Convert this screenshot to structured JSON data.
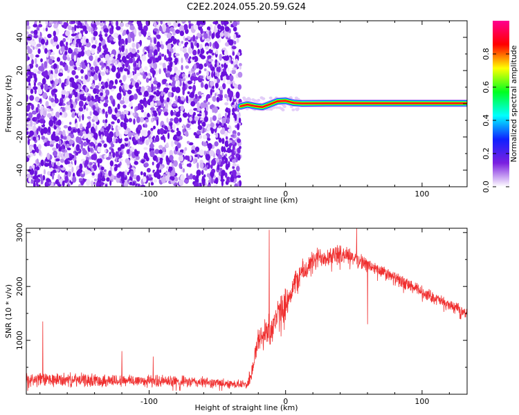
{
  "title": "C2E2.2024.055.20.59.G24",
  "chart_data": [
    {
      "type": "heatmap",
      "name": "spectrogram",
      "xlabel": "Height of straight line (km)",
      "ylabel": "Frequency (Hz)",
      "xlim": [
        -190,
        133
      ],
      "ylim": [
        -50,
        50
      ],
      "xticks": [
        -100,
        0,
        100
      ],
      "xtick_labels": [
        "-100",
        "0",
        "100"
      ],
      "yticks": [
        -40,
        -20,
        0,
        20,
        40
      ],
      "ytick_labels": [
        "-40",
        "-20",
        "0",
        "20",
        "40"
      ],
      "noise_region_x": [
        -190,
        -33
      ],
      "signal_start_x": -33,
      "signal_line": [
        {
          "x": -33,
          "y": -1.5
        },
        {
          "x": -28,
          "y": -0.5
        },
        {
          "x": -22,
          "y": -1.5
        },
        {
          "x": -17,
          "y": -2.0
        },
        {
          "x": -12,
          "y": -0.5
        },
        {
          "x": -6,
          "y": 1.5
        },
        {
          "x": 0,
          "y": 1.8
        },
        {
          "x": 6,
          "y": 0.5
        },
        {
          "x": 12,
          "y": 0.2
        },
        {
          "x": 30,
          "y": 0.3
        },
        {
          "x": 133,
          "y": 0.3
        }
      ],
      "colorbar": {
        "label": "Normalized spectral amplitude",
        "range": [
          0,
          1
        ],
        "ticks": [
          0.0,
          0.2,
          0.4,
          0.6,
          0.8
        ],
        "tick_labels": [
          "0.0",
          "0.2",
          "0.4",
          "0.6",
          "0.8"
        ],
        "colors": [
          "#ffffff",
          "#7b1fe0",
          "#1020ff",
          "#00ffff",
          "#00ff20",
          "#ffff00",
          "#ff0000",
          "#ff0090"
        ]
      },
      "grid": false
    },
    {
      "type": "line",
      "name": "snr",
      "xlabel": "Height of straight line (km)",
      "ylabel": "SNR (10 * v/v)",
      "xlim": [
        -190,
        133
      ],
      "ylim": [
        0,
        3080
      ],
      "xticks": [
        -100,
        0,
        100
      ],
      "xtick_labels": [
        "-100",
        "0",
        "100"
      ],
      "yticks": [
        1000,
        2000,
        3000
      ],
      "ytick_labels": [
        "1000",
        "2000",
        "3000"
      ],
      "color": "#f03030",
      "grid": false,
      "envelope": [
        {
          "x": -190,
          "base": 270,
          "amp": 160
        },
        {
          "x": -150,
          "base": 260,
          "amp": 150
        },
        {
          "x": -100,
          "base": 250,
          "amp": 140
        },
        {
          "x": -60,
          "base": 220,
          "amp": 120
        },
        {
          "x": -28,
          "base": 180,
          "amp": 90
        },
        {
          "x": -25,
          "base": 400,
          "amp": 250
        },
        {
          "x": -20,
          "base": 1000,
          "amp": 300
        },
        {
          "x": -10,
          "base": 1250,
          "amp": 400
        },
        {
          "x": 0,
          "base": 1700,
          "amp": 350
        },
        {
          "x": 10,
          "base": 2200,
          "amp": 300
        },
        {
          "x": 25,
          "base": 2550,
          "amp": 250
        },
        {
          "x": 45,
          "base": 2600,
          "amp": 200
        },
        {
          "x": 60,
          "base": 2400,
          "amp": 160
        },
        {
          "x": 80,
          "base": 2150,
          "amp": 150
        },
        {
          "x": 100,
          "base": 1900,
          "amp": 140
        },
        {
          "x": 120,
          "base": 1650,
          "amp": 130
        },
        {
          "x": 133,
          "base": 1500,
          "amp": 120
        }
      ],
      "spikes": [
        {
          "x": -178,
          "y": 1350
        },
        {
          "x": -120,
          "y": 800
        },
        {
          "x": -97,
          "y": 700
        },
        {
          "x": -12,
          "y": 3050
        },
        {
          "x": 52,
          "y": 3080
        },
        {
          "x": 60,
          "y": 1300
        }
      ]
    }
  ]
}
